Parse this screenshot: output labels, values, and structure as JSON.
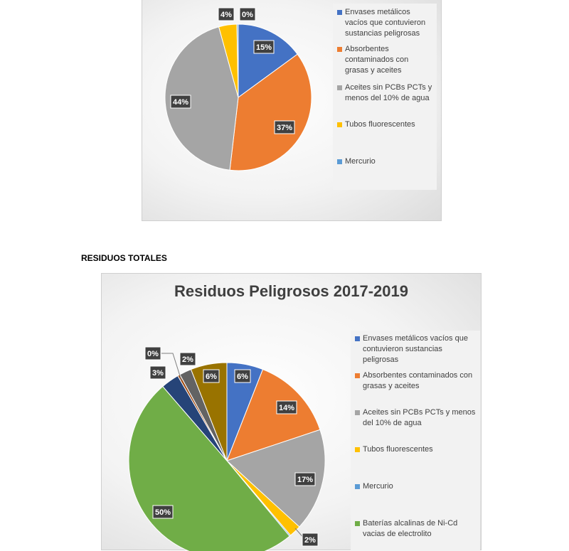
{
  "colors": {
    "blue": "#4472C4",
    "orange": "#ED7D31",
    "gray": "#A5A5A5",
    "yellow": "#FFC000",
    "lightblue": "#5B9BD5",
    "green": "#70AD47",
    "darkblue": "#264478",
    "darkred": "#9E480E",
    "darkgray": "#636363",
    "darkgold": "#997300",
    "label_bg": "#404040"
  },
  "section_heading": "RESIDUOS TOTALES",
  "chart_data": [
    {
      "type": "pie",
      "title": "",
      "legend": "right",
      "slices": [
        {
          "name": "Envases  metálicos vacíos que contuvieron sustancias peligrosas",
          "value": 15,
          "label": "15%",
          "color": "#4472C4"
        },
        {
          "name": "Absorbentes contaminados con grasas y aceites",
          "value": 37,
          "label": "37%",
          "color": "#ED7D31"
        },
        {
          "name": "Aceites sin PCBs PCTs y menos del 10% de agua",
          "value": 44,
          "label": "44%",
          "color": "#A5A5A5"
        },
        {
          "name": "Tubos fluorescentes",
          "value": 4,
          "label": "4%",
          "color": "#FFC000"
        },
        {
          "name": "Mercurio",
          "value": 0.3,
          "label": "0%",
          "color": "#5B9BD5"
        }
      ]
    },
    {
      "type": "pie",
      "title": "Residuos Peligrosos 2017-2019",
      "legend": "right",
      "slices": [
        {
          "name": "Envases  metálicos vacíos que contuvieron sustancias peligrosas",
          "value": 6,
          "label": "6%",
          "color": "#4472C4"
        },
        {
          "name": "Absorbentes contaminados con grasas y aceites",
          "value": 14,
          "label": "14%",
          "color": "#ED7D31"
        },
        {
          "name": "Aceites sin PCBs PCTs y menos del 10% de agua",
          "value": 17,
          "label": "17%",
          "color": "#A5A5A5"
        },
        {
          "name": "Tubos fluorescentes",
          "value": 2,
          "label": "2%",
          "color": "#FFC000"
        },
        {
          "name": "Mercurio",
          "value": 0.2,
          "label": "",
          "color": "#5B9BD5"
        },
        {
          "name": "Baterías alcalinas  de Ni-Cd vacias de electrolito",
          "value": 50,
          "label": "50%",
          "color": "#70AD47"
        },
        {
          "name": "",
          "value": 3,
          "label": "3%",
          "color": "#264478"
        },
        {
          "name": "",
          "value": 0.4,
          "label": "0%",
          "color": "#9E480E"
        },
        {
          "name": "",
          "value": 2,
          "label": "2%",
          "color": "#636363"
        },
        {
          "name": "",
          "value": 6,
          "label": "6%",
          "color": "#997300"
        }
      ]
    }
  ]
}
